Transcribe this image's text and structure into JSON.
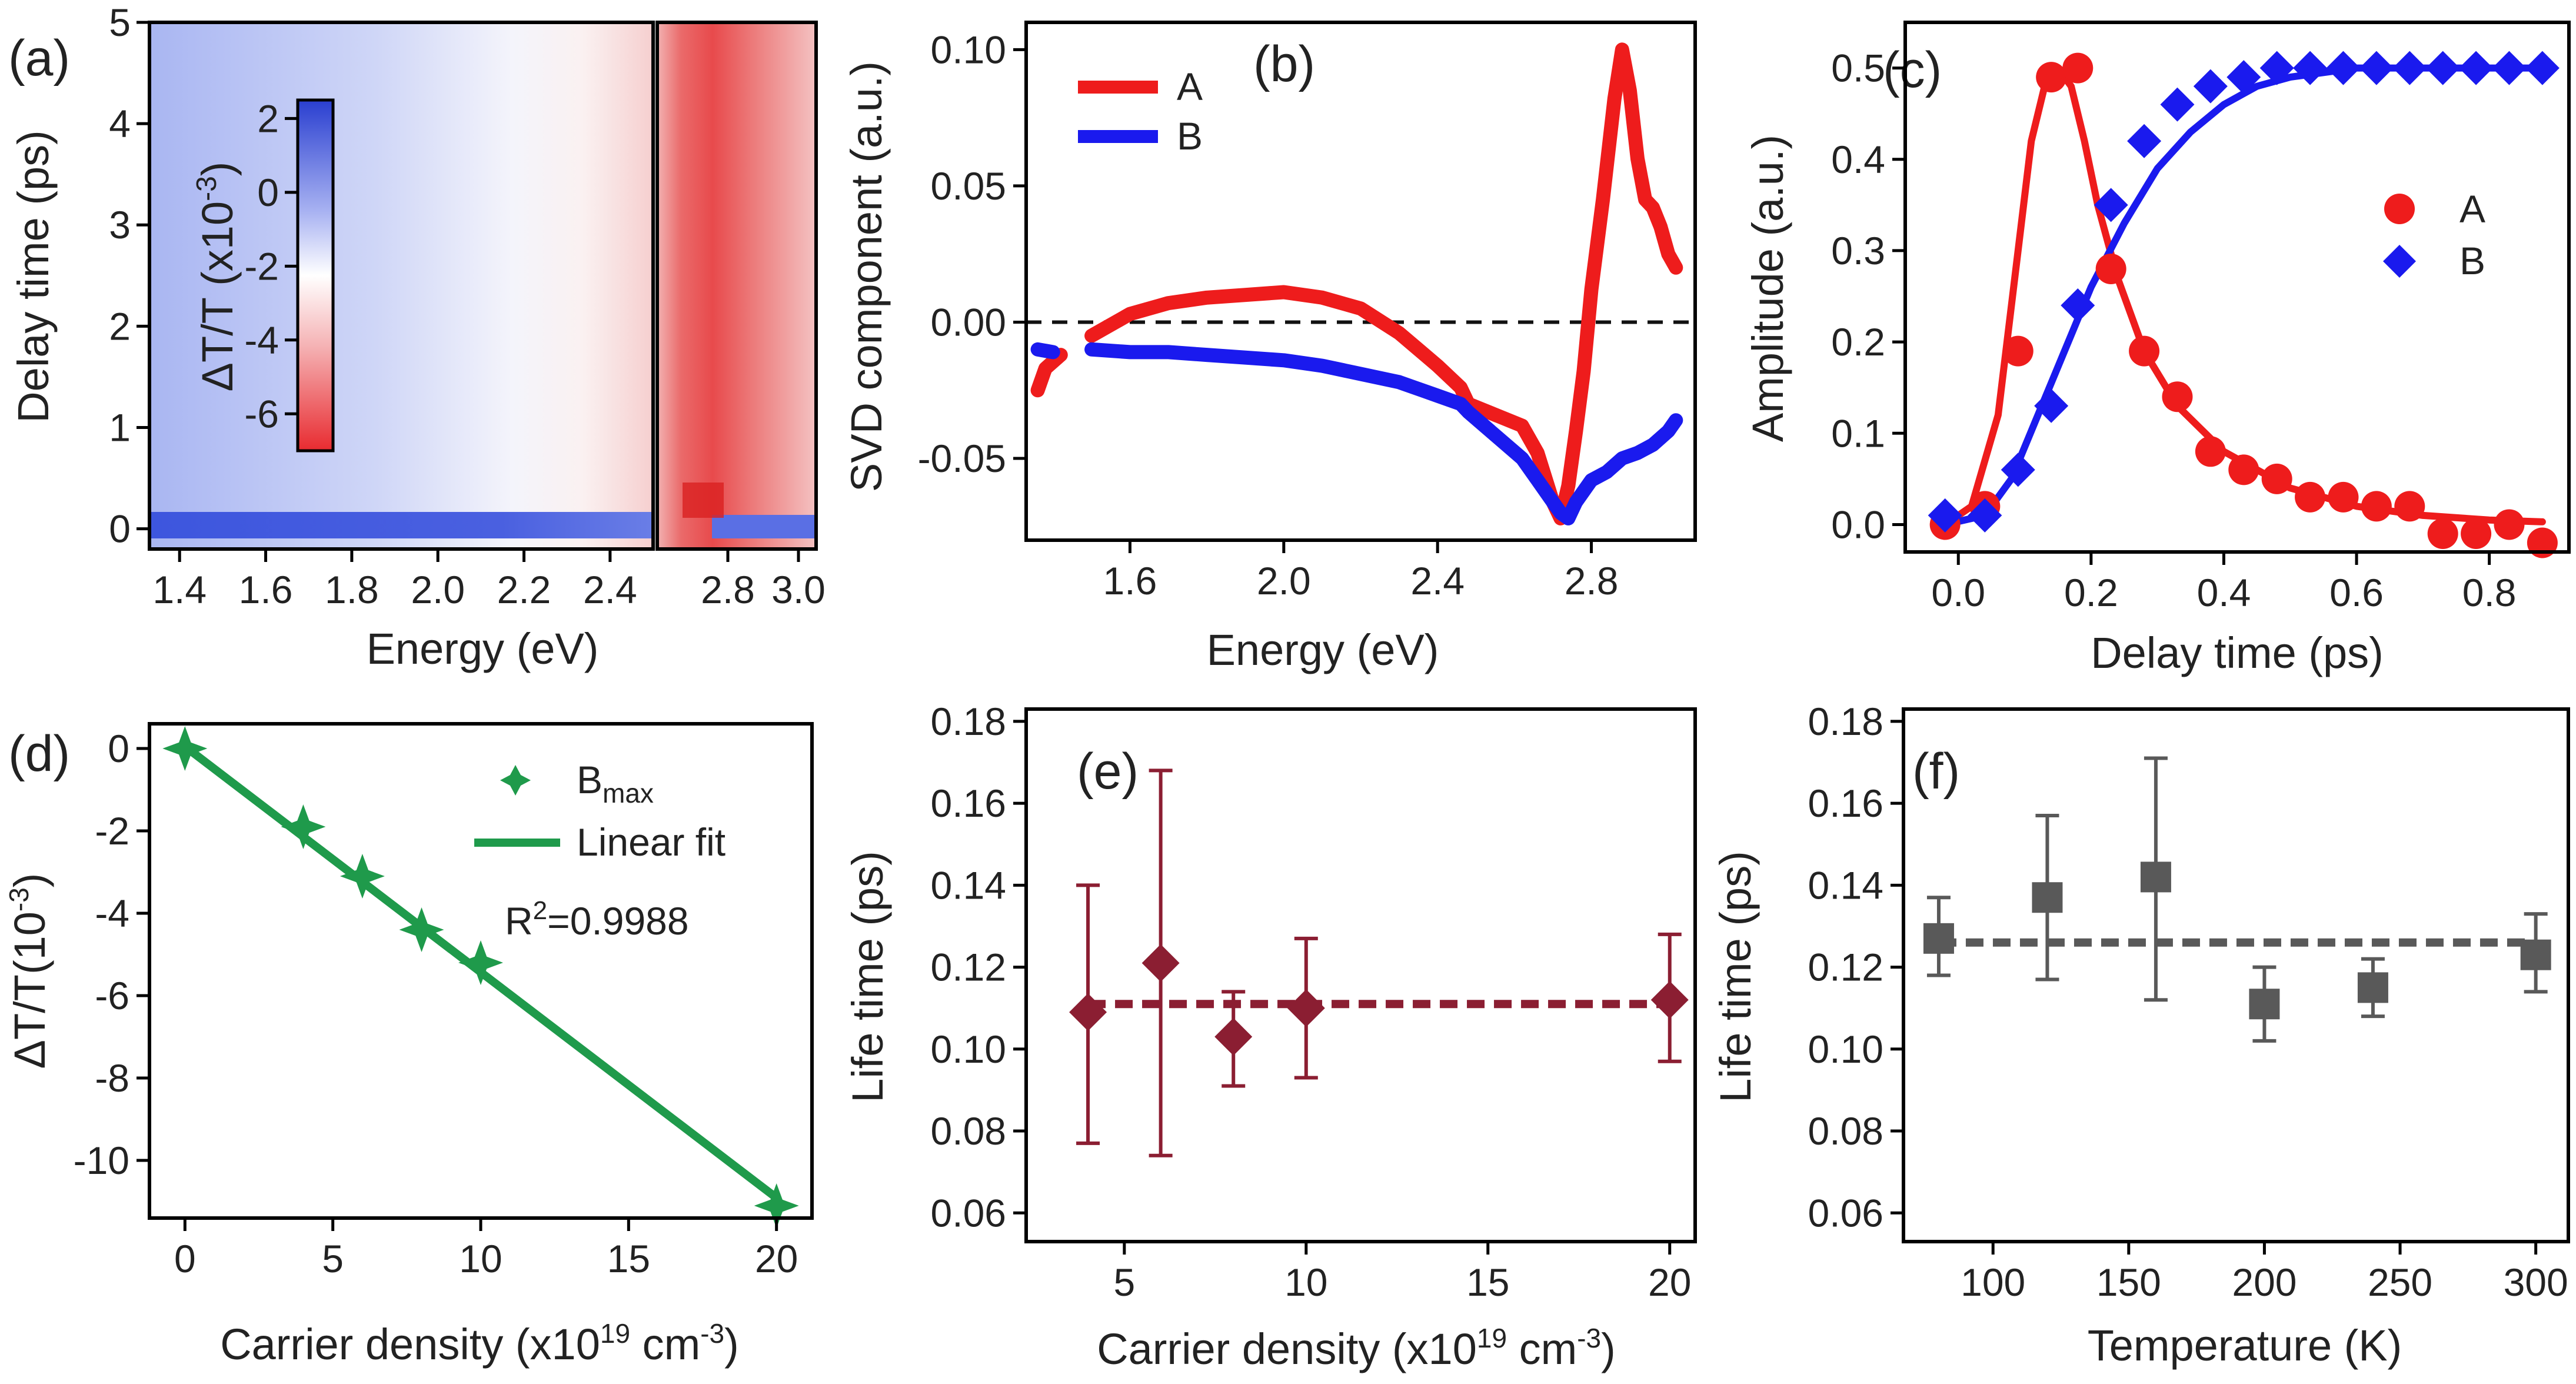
{
  "figure": {
    "panels": [
      "(a)",
      "(b)",
      "(c)",
      "(d)",
      "(e)",
      "(f)"
    ]
  },
  "colors": {
    "red": "#ee1c1c",
    "blue": "#1a1aee",
    "green": "#1f9a4b",
    "maroon": "#8b1e32",
    "gray": "#595959",
    "map_low": "#e8363a",
    "map_high": "#3b55e0"
  },
  "chart_data": [
    {
      "panel": "(a)",
      "type": "heatmap",
      "xlabel": "Energy (eV)",
      "ylabel": "Delay time (ps)",
      "xticks_left": [
        "1.4",
        "1.6",
        "1.8",
        "2.0",
        "2.2",
        "2.4"
      ],
      "xticks_right": [
        "2.8",
        "3.0"
      ],
      "yticks": [
        "0",
        "1",
        "2",
        "3",
        "4",
        "5"
      ],
      "x_range_left": [
        1.33,
        2.5
      ],
      "x_range_right": [
        2.6,
        3.05
      ],
      "y_range": [
        -0.2,
        5.0
      ],
      "colorbar": {
        "label_main": "ΔT/T (x10",
        "label_exp": "-3",
        "label_close": ")",
        "ticks": [
          "2",
          "0",
          "-2",
          "-4",
          "-6"
        ],
        "range": [
          -7,
          2.5
        ]
      }
    },
    {
      "panel": "(b)",
      "type": "line",
      "xlabel": "Energy (eV)",
      "ylabel": "SVD component (a.u.)",
      "xlim": [
        1.33,
        3.07
      ],
      "ylim": [
        -0.08,
        0.11
      ],
      "xticks": [
        "1.6",
        "2.0",
        "2.4",
        "2.8"
      ],
      "yticks": [
        "0.10",
        "0.05",
        "0.00",
        "-0.05"
      ],
      "legend": [
        "A",
        "B"
      ],
      "series": [
        {
          "name": "A",
          "x": [
            1.36,
            1.38,
            1.42,
            1.5,
            1.6,
            1.7,
            1.8,
            1.9,
            2.0,
            2.1,
            2.2,
            2.3,
            2.4,
            2.46,
            2.48,
            2.62,
            2.66,
            2.7,
            2.72,
            2.74,
            2.76,
            2.78,
            2.8,
            2.83,
            2.86,
            2.88,
            2.9,
            2.92,
            2.94,
            2.96,
            2.98,
            3.0,
            3.02
          ],
          "y": [
            -0.025,
            -0.017,
            -0.012,
            -0.005,
            0.003,
            0.007,
            0.009,
            0.01,
            0.011,
            0.009,
            0.005,
            -0.004,
            -0.016,
            -0.024,
            -0.03,
            -0.038,
            -0.048,
            -0.066,
            -0.072,
            -0.06,
            -0.04,
            -0.018,
            0.012,
            0.045,
            0.082,
            0.1,
            0.085,
            0.06,
            0.045,
            0.042,
            0.035,
            0.025,
            0.02
          ]
        },
        {
          "name": "B",
          "x": [
            1.36,
            1.4,
            1.5,
            1.6,
            1.7,
            1.8,
            1.9,
            2.0,
            2.1,
            2.2,
            2.3,
            2.4,
            2.46,
            2.48,
            2.62,
            2.66,
            2.7,
            2.72,
            2.74,
            2.76,
            2.8,
            2.84,
            2.88,
            2.92,
            2.96,
            3.0,
            3.02
          ],
          "y": [
            -0.01,
            -0.011,
            -0.01,
            -0.011,
            -0.011,
            -0.012,
            -0.013,
            -0.014,
            -0.016,
            -0.019,
            -0.022,
            -0.027,
            -0.03,
            -0.033,
            -0.05,
            -0.058,
            -0.066,
            -0.07,
            -0.072,
            -0.066,
            -0.058,
            -0.055,
            -0.05,
            -0.048,
            -0.045,
            -0.04,
            -0.036
          ]
        }
      ],
      "reference_line": 0.0
    },
    {
      "panel": "(c)",
      "type": "scatter",
      "xlabel": "Delay time (ps)",
      "ylabel": "Amplitude (a.u.)",
      "xlim": [
        -0.08,
        0.92
      ],
      "ylim": [
        -0.03,
        0.55
      ],
      "xticks": [
        "0.0",
        "0.2",
        "0.4",
        "0.6",
        "0.8"
      ],
      "yticks": [
        "0.0",
        "0.1",
        "0.2",
        "0.3",
        "0.4",
        "0.5"
      ],
      "legend": [
        "A",
        "B"
      ],
      "series": [
        {
          "name": "A",
          "x": [
            -0.02,
            0.04,
            0.09,
            0.14,
            0.18,
            0.23,
            0.28,
            0.33,
            0.38,
            0.43,
            0.48,
            0.53,
            0.58,
            0.63,
            0.68,
            0.73,
            0.78,
            0.83,
            0.88
          ],
          "y": [
            0.0,
            0.02,
            0.19,
            0.49,
            0.5,
            0.28,
            0.19,
            0.14,
            0.08,
            0.06,
            0.05,
            0.03,
            0.03,
            0.02,
            0.02,
            -0.01,
            -0.01,
            0.0,
            -0.02
          ],
          "fit_x": [
            -0.02,
            0.02,
            0.06,
            0.09,
            0.11,
            0.13,
            0.15,
            0.17,
            0.19,
            0.21,
            0.24,
            0.28,
            0.33,
            0.4,
            0.5,
            0.6,
            0.7,
            0.8,
            0.88
          ],
          "fit_y": [
            0.0,
            0.02,
            0.12,
            0.3,
            0.42,
            0.48,
            0.5,
            0.48,
            0.42,
            0.35,
            0.27,
            0.19,
            0.13,
            0.08,
            0.04,
            0.02,
            0.01,
            0.005,
            0.003
          ]
        },
        {
          "name": "B",
          "x": [
            -0.02,
            0.04,
            0.09,
            0.14,
            0.18,
            0.23,
            0.28,
            0.33,
            0.38,
            0.43,
            0.48,
            0.53,
            0.58,
            0.63,
            0.68,
            0.73,
            0.78,
            0.83,
            0.88
          ],
          "y": [
            0.01,
            0.01,
            0.06,
            0.13,
            0.24,
            0.35,
            0.42,
            0.46,
            0.48,
            0.49,
            0.5,
            0.5,
            0.5,
            0.5,
            0.5,
            0.5,
            0.5,
            0.5,
            0.5
          ],
          "fit_x": [
            -0.02,
            0.04,
            0.08,
            0.12,
            0.16,
            0.2,
            0.25,
            0.3,
            0.35,
            0.4,
            0.45,
            0.5,
            0.6,
            0.7,
            0.8,
            0.88
          ],
          "fit_y": [
            0.0,
            0.01,
            0.05,
            0.12,
            0.19,
            0.26,
            0.33,
            0.39,
            0.43,
            0.46,
            0.48,
            0.49,
            0.5,
            0.5,
            0.5,
            0.5
          ]
        }
      ]
    },
    {
      "panel": "(d)",
      "type": "scatter",
      "xlabel": "Carrier density (x10",
      "xlabel_exp": "19",
      "xlabel_unit": " cm",
      "xlabel_unit_exp": "-3",
      "xlabel_close": ")",
      "ylabel": "ΔT/T(10",
      "ylabel_exp": "-3",
      "ylabel_close": ")",
      "xlim": [
        -1.2,
        21.2
      ],
      "ylim": [
        -11.4,
        0.6
      ],
      "xticks": [
        "0",
        "5",
        "10",
        "15",
        "20"
      ],
      "yticks": [
        "0",
        "-2",
        "-4",
        "-6",
        "-8",
        "-10"
      ],
      "legend_points": "B",
      "legend_points_sub": "max",
      "legend_fit": "Linear fit",
      "r2_prefix": "R",
      "r2_exp": "2",
      "r2_value": "=0.9988",
      "x": [
        0,
        4,
        6,
        8,
        10,
        20
      ],
      "y": [
        0.0,
        -1.9,
        -3.1,
        -4.4,
        -5.2,
        -11.1
      ],
      "fit": {
        "slope": -0.548,
        "intercept": 0.05
      }
    },
    {
      "panel": "(e)",
      "type": "scatter",
      "xlabel": "Carrier density (x10",
      "xlabel_exp": "19",
      "xlabel_unit": " cm",
      "xlabel_unit_exp": "-3",
      "xlabel_close": ")",
      "ylabel": "Life time (ps)",
      "xlim": [
        2.3,
        20.7
      ],
      "ylim": [
        0.053,
        0.183
      ],
      "xticks": [
        "5",
        "10",
        "15",
        "20"
      ],
      "yticks": [
        "0.18",
        "0.16",
        "0.14",
        "0.12",
        "0.10",
        "0.08",
        "0.06"
      ],
      "x": [
        4,
        6,
        8,
        10,
        20
      ],
      "y": [
        0.109,
        0.121,
        0.103,
        0.11,
        0.112
      ],
      "err_low": [
        0.077,
        0.074,
        0.091,
        0.093,
        0.097
      ],
      "err_high": [
        0.14,
        0.168,
        0.114,
        0.127,
        0.128
      ],
      "mean_line": 0.111
    },
    {
      "panel": "(f)",
      "type": "scatter",
      "xlabel": "Temperature (K)",
      "ylabel": "Life time (ps)",
      "xlim": [
        67,
        312
      ],
      "ylim": [
        0.053,
        0.183
      ],
      "xticks": [
        "100",
        "150",
        "200",
        "250",
        "300"
      ],
      "yticks": [
        "0.18",
        "0.16",
        "0.14",
        "0.12",
        "0.10",
        "0.08",
        "0.06"
      ],
      "x": [
        80,
        120,
        160,
        200,
        240,
        300
      ],
      "y": [
        0.127,
        0.137,
        0.142,
        0.111,
        0.115,
        0.123
      ],
      "err_low": [
        0.118,
        0.117,
        0.112,
        0.102,
        0.108,
        0.114
      ],
      "err_high": [
        0.137,
        0.157,
        0.171,
        0.12,
        0.122,
        0.133
      ],
      "mean_line": 0.126
    }
  ]
}
